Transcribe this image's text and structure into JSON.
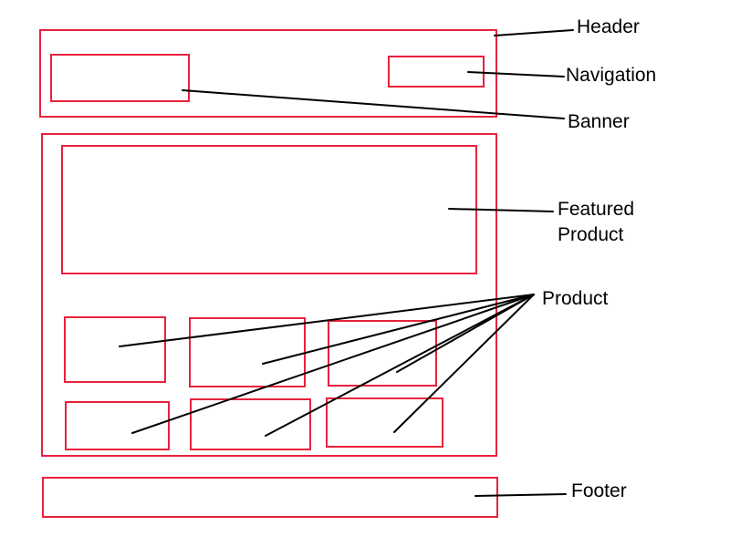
{
  "colors": {
    "box_border": "#e8223c",
    "leader_line": "#000000",
    "text": "#000000",
    "background": "#ffffff"
  },
  "labels": {
    "header": "Header",
    "navigation": "Navigation",
    "banner": "Banner",
    "featured_line1": "Featured",
    "featured_line2": "Product",
    "product": "Product",
    "footer": "Footer"
  }
}
